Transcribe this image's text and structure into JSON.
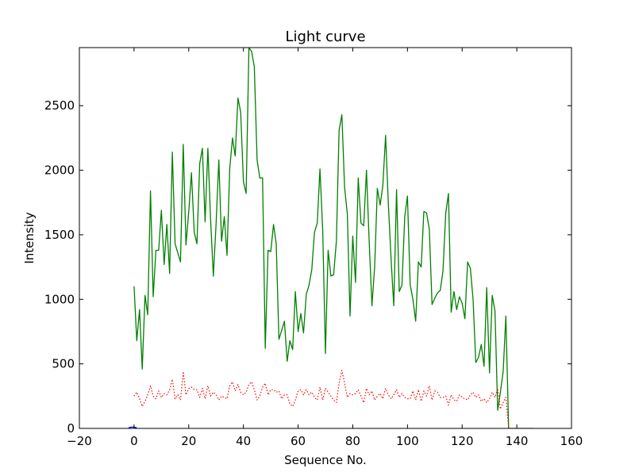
{
  "chart_data": {
    "type": "line",
    "title": "Light curve",
    "xlabel": "Sequence No.",
    "ylabel": "Intensity",
    "xlim": [
      -20,
      160
    ],
    "ylim": [
      0,
      2950
    ],
    "xticks": [
      -20,
      0,
      20,
      40,
      60,
      80,
      100,
      120,
      140,
      160
    ],
    "yticks": [
      0,
      500,
      1000,
      1500,
      2000,
      2500
    ],
    "xtick_labels": [
      "−20",
      "0",
      "20",
      "40",
      "60",
      "80",
      "100",
      "120",
      "140",
      "160"
    ],
    "ytick_labels": [
      "0",
      "500",
      "1000",
      "1500",
      "2000",
      "2500"
    ],
    "grid": false,
    "series": [
      {
        "color": "#008000",
        "linestyle": "solid",
        "x": [
          0,
          1,
          2,
          3,
          4,
          5,
          6,
          7,
          8,
          9,
          10,
          11,
          12,
          13,
          14,
          15,
          16,
          17,
          18,
          19,
          20,
          21,
          22,
          23,
          24,
          25,
          26,
          27,
          28,
          29,
          30,
          31,
          32,
          33,
          34,
          35,
          36,
          37,
          38,
          39,
          40,
          41,
          42,
          43,
          44,
          45,
          46,
          47,
          48,
          49,
          50,
          51,
          52,
          53,
          54,
          55,
          56,
          57,
          58,
          59,
          60,
          61,
          62,
          63,
          64,
          65,
          66,
          67,
          68,
          69,
          70,
          71,
          72,
          73,
          74,
          75,
          76,
          77,
          78,
          79,
          80,
          81,
          82,
          83,
          84,
          85,
          86,
          87,
          88,
          89,
          90,
          91,
          92,
          93,
          94,
          95,
          96,
          97,
          98,
          99,
          100,
          101,
          102,
          103,
          104,
          105,
          106,
          107,
          108,
          109,
          110,
          111,
          112,
          113,
          114,
          115,
          116,
          117,
          118,
          119,
          120,
          121,
          122,
          123,
          124,
          125,
          126,
          127,
          128,
          129,
          130,
          131,
          132,
          133,
          134,
          135,
          136,
          137,
          138,
          139,
          140,
          141,
          142,
          143,
          144,
          145,
          146
        ],
        "values": [
          1100,
          680,
          920,
          460,
          1030,
          880,
          1840,
          1020,
          1380,
          1380,
          1690,
          1270,
          1580,
          1200,
          2140,
          1430,
          1360,
          1290,
          2200,
          1420,
          1680,
          1980,
          1520,
          1430,
          2050,
          2170,
          1600,
          2170,
          1620,
          1180,
          1580,
          2080,
          1450,
          1640,
          1340,
          2010,
          2250,
          2110,
          2560,
          2450,
          1910,
          1820,
          2950,
          2920,
          2800,
          2080,
          1940,
          1940,
          620,
          1380,
          1370,
          1580,
          1430,
          690,
          760,
          830,
          520,
          680,
          610,
          1060,
          750,
          890,
          740,
          1040,
          1110,
          1230,
          1520,
          1590,
          2010,
          1530,
          580,
          1380,
          1180,
          1190,
          1450,
          2310,
          2430,
          1870,
          1660,
          870,
          1490,
          1130,
          1940,
          1590,
          1570,
          2000,
          1450,
          950,
          1250,
          1860,
          1730,
          1880,
          2270,
          1750,
          1310,
          950,
          1850,
          1060,
          1110,
          1640,
          1800,
          1110,
          1000,
          830,
          1290,
          1250,
          1680,
          1670,
          1540,
          960,
          1010,
          1050,
          1070,
          1220,
          1670,
          1820,
          900,
          1060,
          920,
          1020,
          970,
          850,
          1290,
          1240,
          1000,
          510,
          550,
          650,
          480,
          1090,
          430,
          1030,
          910,
          140,
          280,
          440,
          870,
          0,
          0,
          0,
          0,
          0,
          0,
          0,
          0,
          0,
          0
        ]
      },
      {
        "color": "#ff0000",
        "linestyle": "dotted",
        "x": [
          0,
          1,
          2,
          3,
          4,
          5,
          6,
          7,
          8,
          9,
          10,
          11,
          12,
          13,
          14,
          15,
          16,
          17,
          18,
          19,
          20,
          21,
          22,
          23,
          24,
          25,
          26,
          27,
          28,
          29,
          30,
          31,
          32,
          33,
          34,
          35,
          36,
          37,
          38,
          39,
          40,
          41,
          42,
          43,
          44,
          45,
          46,
          47,
          48,
          49,
          50,
          51,
          52,
          53,
          54,
          55,
          56,
          57,
          58,
          59,
          60,
          61,
          62,
          63,
          64,
          65,
          66,
          67,
          68,
          69,
          70,
          71,
          72,
          73,
          74,
          75,
          76,
          77,
          78,
          79,
          80,
          81,
          82,
          83,
          84,
          85,
          86,
          87,
          88,
          89,
          90,
          91,
          92,
          93,
          94,
          95,
          96,
          97,
          98,
          99,
          100,
          101,
          102,
          103,
          104,
          105,
          106,
          107,
          108,
          109,
          110,
          111,
          112,
          113,
          114,
          115,
          116,
          117,
          118,
          119,
          120,
          121,
          122,
          123,
          124,
          125,
          126,
          127,
          128,
          129,
          130,
          131,
          132,
          133,
          134,
          135,
          136,
          137
        ],
        "values": [
          250,
          280,
          230,
          170,
          210,
          260,
          330,
          250,
          230,
          290,
          240,
          270,
          260,
          300,
          380,
          230,
          260,
          220,
          440,
          260,
          310,
          320,
          300,
          300,
          240,
          310,
          230,
          330,
          250,
          280,
          260,
          220,
          250,
          240,
          230,
          330,
          360,
          290,
          340,
          280,
          260,
          280,
          340,
          360,
          300,
          220,
          250,
          320,
          350,
          260,
          300,
          300,
          280,
          290,
          230,
          260,
          260,
          190,
          170,
          220,
          290,
          300,
          260,
          300,
          260,
          280,
          240,
          220,
          320,
          220,
          310,
          280,
          250,
          220,
          200,
          350,
          450,
          350,
          240,
          270,
          260,
          270,
          300,
          250,
          200,
          310,
          260,
          290,
          220,
          250,
          270,
          230,
          310,
          260,
          230,
          260,
          300,
          240,
          270,
          240,
          230,
          230,
          290,
          220,
          300,
          210,
          290,
          250,
          330,
          220,
          290,
          280,
          240,
          240,
          250,
          180,
          260,
          220,
          210,
          260,
          240,
          230,
          220,
          260,
          280,
          240,
          260,
          210,
          230,
          200,
          230,
          280,
          240,
          310,
          150,
          200,
          240,
          0
        ]
      },
      {
        "color": "#0000ff",
        "linestyle": "solid",
        "x": [
          -2,
          -1,
          0,
          1
        ],
        "values": [
          5,
          10,
          10,
          5
        ]
      }
    ]
  }
}
